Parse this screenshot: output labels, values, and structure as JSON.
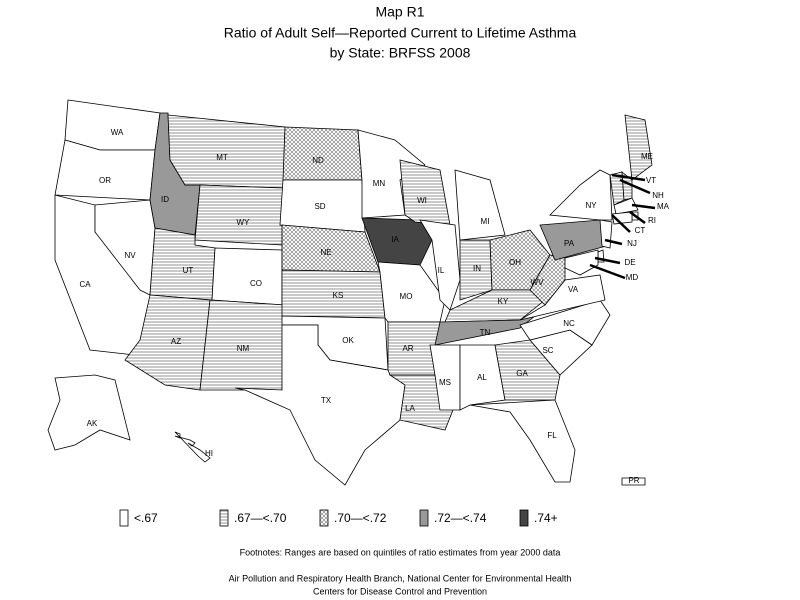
{
  "title": [
    "Map R1",
    "Ratio of Adult Self—Reported Current to Lifetime Asthma",
    "by State: BRFSS 2008"
  ],
  "legend": [
    "<.67",
    ".67—<.70",
    ".70—<.72",
    ".72—<.74",
    ".74+"
  ],
  "states": [
    {
      "label": "WA",
      "class": 0
    },
    {
      "label": "OR",
      "class": 0
    },
    {
      "label": "CA",
      "class": 0
    },
    {
      "label": "NV",
      "class": 0
    },
    {
      "label": "ID",
      "class": 3
    },
    {
      "label": "MT",
      "class": 1
    },
    {
      "label": "WY",
      "class": 1
    },
    {
      "label": "UT",
      "class": 1
    },
    {
      "label": "CO",
      "class": 0
    },
    {
      "label": "AZ",
      "class": 1
    },
    {
      "label": "NM",
      "class": 1
    },
    {
      "label": "ND",
      "class": 2
    },
    {
      "label": "SD",
      "class": 0
    },
    {
      "label": "NE",
      "class": 2
    },
    {
      "label": "KS",
      "class": 1
    },
    {
      "label": "OK",
      "class": 0
    },
    {
      "label": "TX",
      "class": 0
    },
    {
      "label": "MN",
      "class": 0
    },
    {
      "label": "IA",
      "class": 4
    },
    {
      "label": "MO",
      "class": 0
    },
    {
      "label": "AR",
      "class": 1
    },
    {
      "label": "LA",
      "class": 1
    },
    {
      "label": "WI",
      "class": 1
    },
    {
      "label": "IL",
      "class": 0
    },
    {
      "label": "MI",
      "class": 0
    },
    {
      "label": "IN",
      "class": 1
    },
    {
      "label": "OH",
      "class": 2
    },
    {
      "label": "KY",
      "class": 1
    },
    {
      "label": "TN",
      "class": 3
    },
    {
      "label": "MS",
      "class": 0
    },
    {
      "label": "AL",
      "class": 0
    },
    {
      "label": "GA",
      "class": 1
    },
    {
      "label": "FL",
      "class": 0
    },
    {
      "label": "SC",
      "class": 0
    },
    {
      "label": "NC",
      "class": 0
    },
    {
      "label": "VA",
      "class": 0
    },
    {
      "label": "WV",
      "class": 2
    },
    {
      "label": "PA",
      "class": 3
    },
    {
      "label": "NY",
      "class": 0
    },
    {
      "label": "ME",
      "class": 1
    },
    {
      "label": "VT",
      "class": 1
    },
    {
      "label": "NH",
      "class": 1
    },
    {
      "label": "MA",
      "class": 0
    },
    {
      "label": "RI",
      "class": 0
    },
    {
      "label": "CT",
      "class": 0
    },
    {
      "label": "NJ",
      "class": 0
    },
    {
      "label": "DE",
      "class": 0
    },
    {
      "label": "MD",
      "class": 0
    },
    {
      "label": "AK",
      "class": 0
    },
    {
      "label": "HI",
      "class": 0
    },
    {
      "label": "PR",
      "class": 0
    }
  ],
  "footnote": "Footnotes: Ranges are based on quintiles of ratio estimates from year 2000 data",
  "credits": [
    "Air Pollution and Respiratory Health Branch, National Center for Environmental Health",
    "Centers for Disease Control and Prevention"
  ]
}
